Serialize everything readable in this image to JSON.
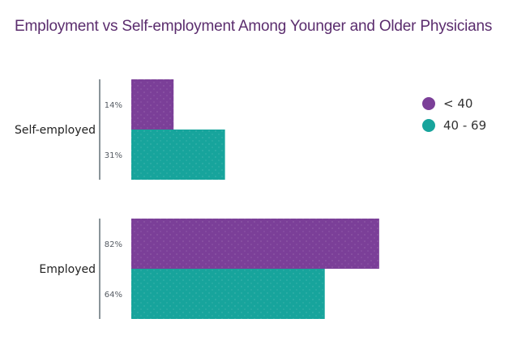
{
  "chart_data": {
    "type": "bar",
    "orientation": "horizontal",
    "title": "Employment vs Self-employment Among Younger and Older Physicians",
    "xlabel": "",
    "ylabel": "",
    "value_unit": "%",
    "xlim": [
      0,
      100
    ],
    "grid": false,
    "legend_position": "right",
    "categories": [
      "Self-employed",
      "Employed"
    ],
    "series": [
      {
        "name": "< 40",
        "color": "#7b3f98",
        "values": [
          14,
          82
        ],
        "value_labels": [
          "14%",
          "82%"
        ]
      },
      {
        "name": "40 - 69",
        "color": "#17a49c",
        "values": [
          31,
          64
        ],
        "value_labels": [
          "31%",
          "64%"
        ]
      }
    ]
  }
}
